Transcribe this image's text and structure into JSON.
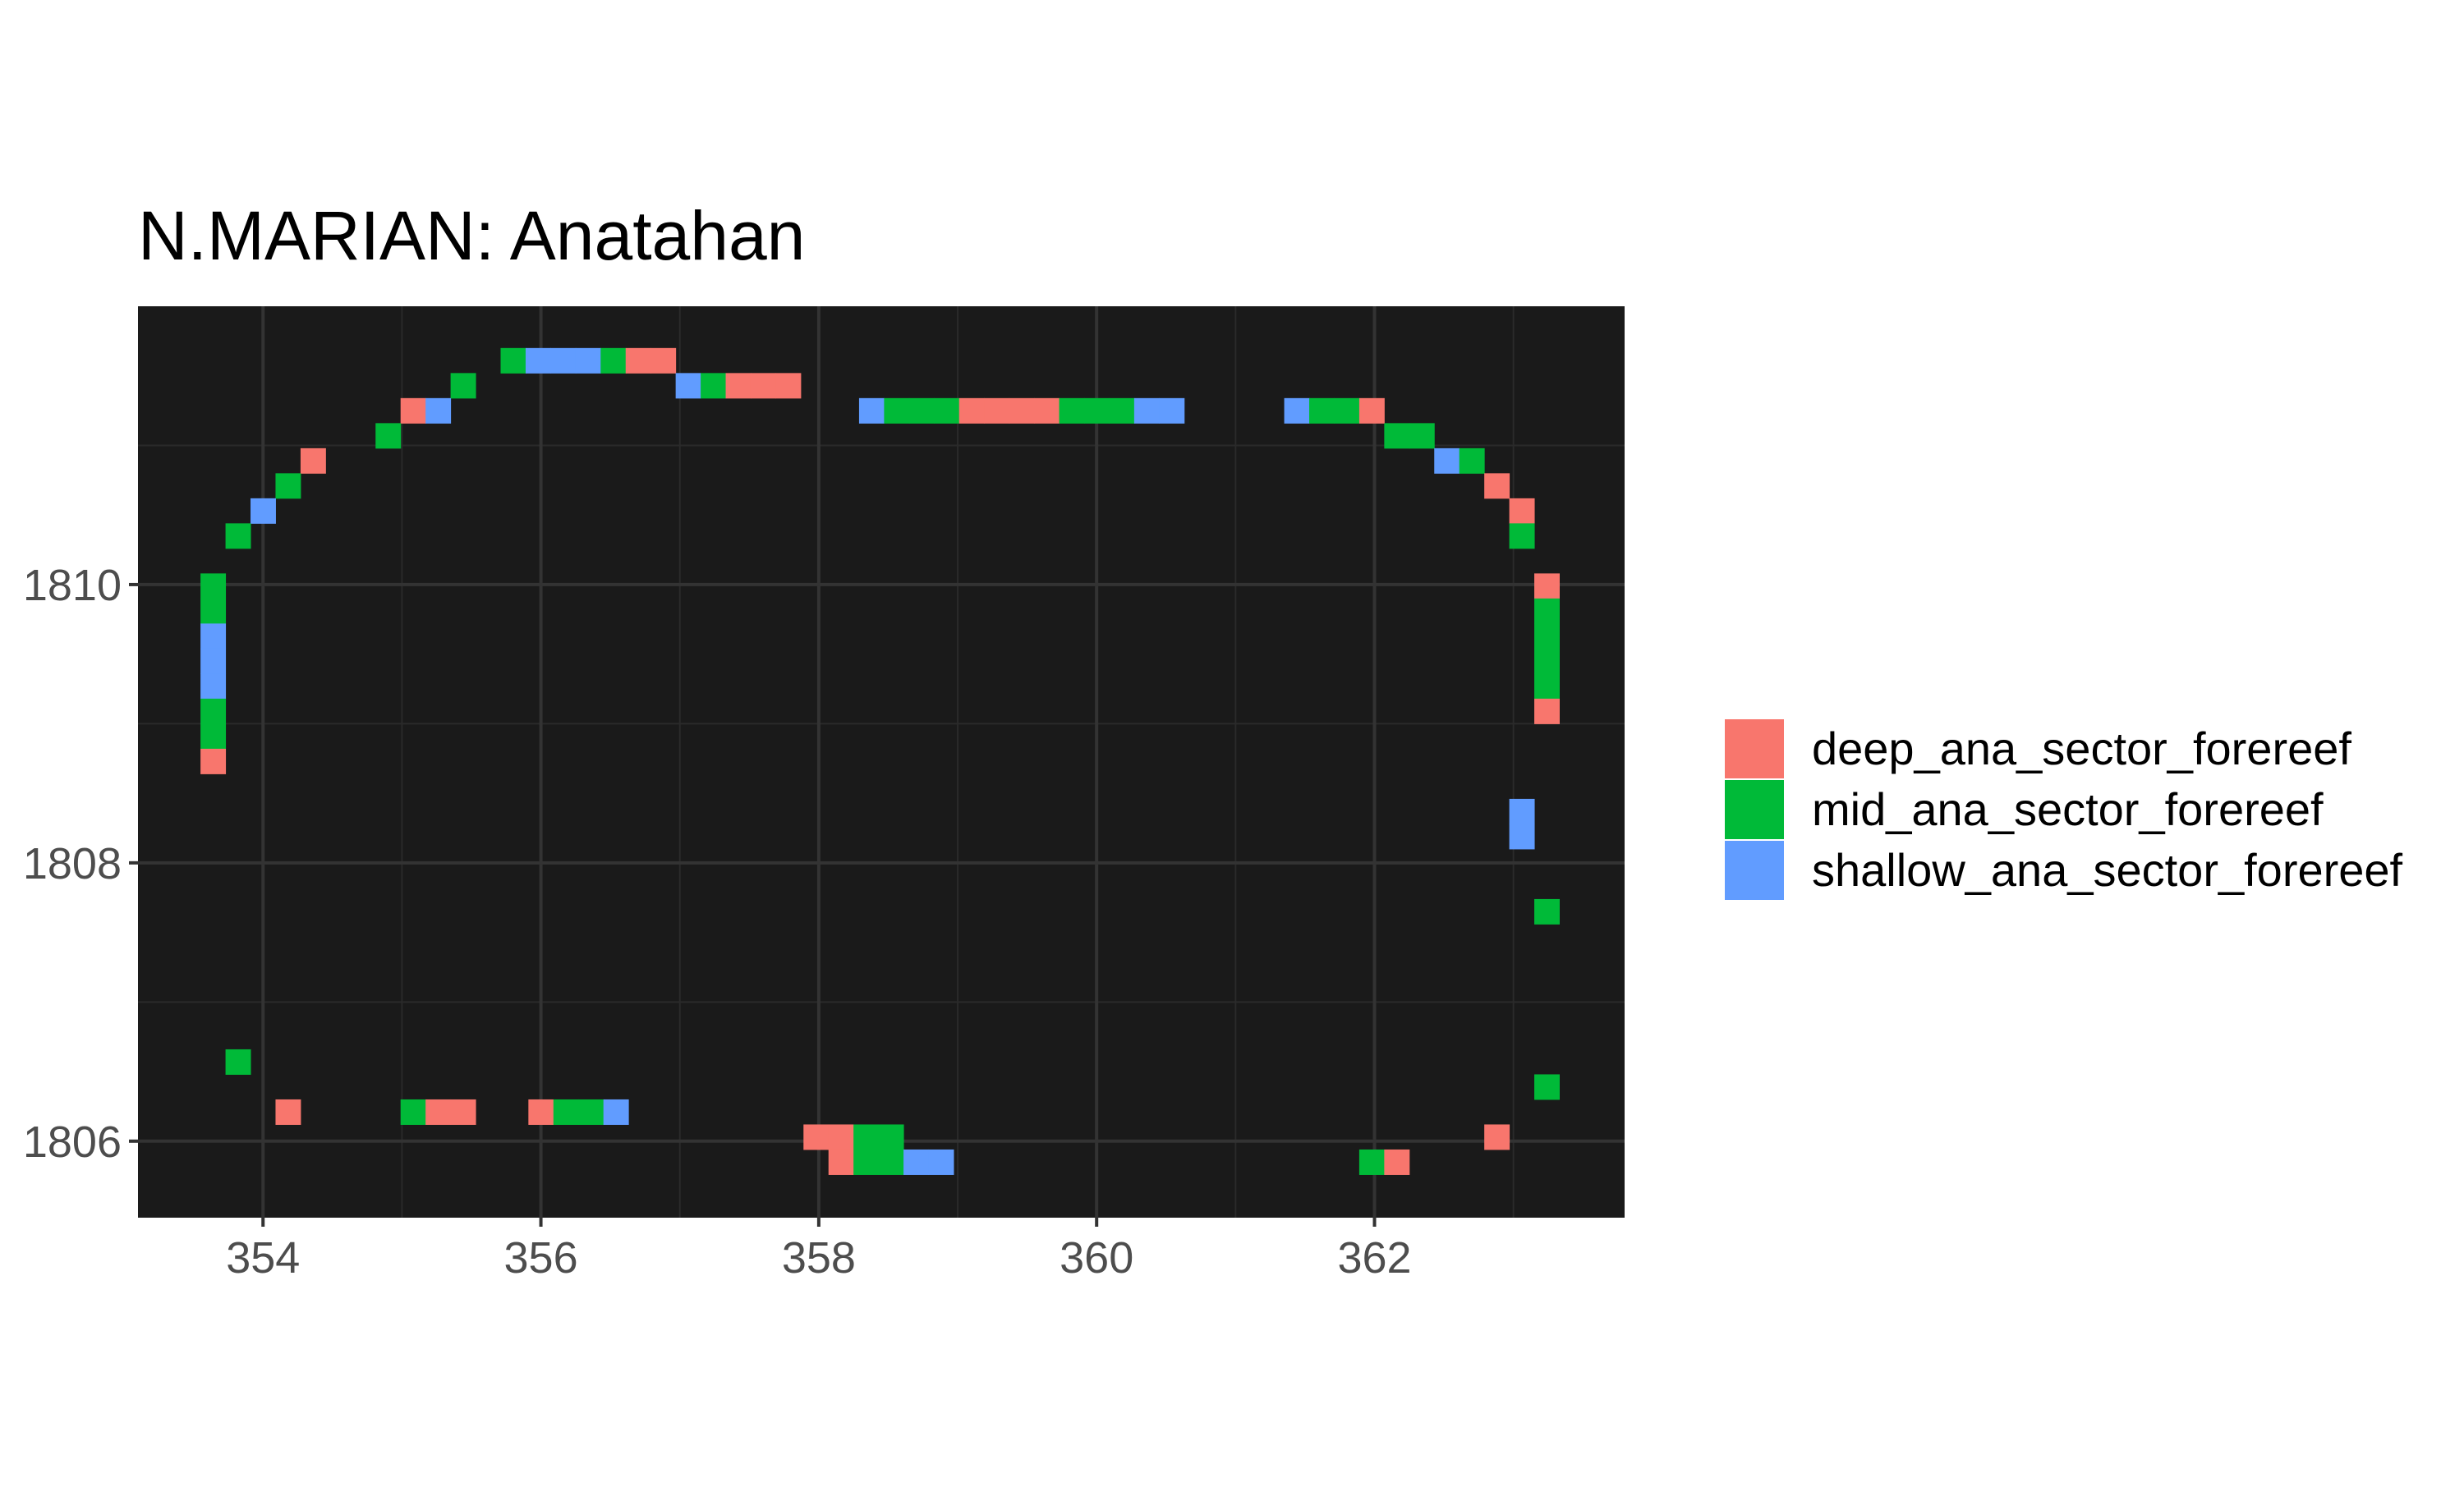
{
  "chart_data": {
    "type": "heatmap",
    "title": "N.MARIAN: Anatahan",
    "xlabel": "",
    "ylabel": "",
    "xlim": [
      353.1,
      363.8
    ],
    "ylim": [
      1805.45,
      1812.0
    ],
    "cell_size": 0.18,
    "x_ticks": [
      354,
      356,
      358,
      360,
      362
    ],
    "x_tick_labels": [
      "354",
      "356",
      "358",
      "360",
      "362"
    ],
    "y_ticks": [
      1806,
      1808,
      1810
    ],
    "y_tick_labels": [
      "1806",
      "1808",
      "1810"
    ],
    "panel_background": "#1a1a1a",
    "grid": true,
    "legend_position": "right",
    "series": [
      {
        "name": "deep_ana_sector_forereef",
        "color": "#F8766D"
      },
      {
        "name": "mid_ana_sector_forereef",
        "color": "#00BA38"
      },
      {
        "name": "shallow_ana_sector_forereef",
        "color": "#619CFF"
      }
    ],
    "cells": [
      {
        "x": 355.8,
        "y": 1811.61,
        "v": "mid_ana_sector_forereef"
      },
      {
        "x": 355.98,
        "y": 1811.61,
        "v": "shallow_ana_sector_forereef"
      },
      {
        "x": 356.16,
        "y": 1811.61,
        "v": "shallow_ana_sector_forereef"
      },
      {
        "x": 356.34,
        "y": 1811.61,
        "v": "shallow_ana_sector_forereef"
      },
      {
        "x": 356.52,
        "y": 1811.61,
        "v": "mid_ana_sector_forereef"
      },
      {
        "x": 356.7,
        "y": 1811.61,
        "v": "deep_ana_sector_forereef"
      },
      {
        "x": 356.88,
        "y": 1811.61,
        "v": "deep_ana_sector_forereef"
      },
      {
        "x": 355.44,
        "y": 1811.43,
        "v": "mid_ana_sector_forereef"
      },
      {
        "x": 357.06,
        "y": 1811.43,
        "v": "shallow_ana_sector_forereef"
      },
      {
        "x": 357.24,
        "y": 1811.43,
        "v": "mid_ana_sector_forereef"
      },
      {
        "x": 357.42,
        "y": 1811.43,
        "v": "deep_ana_sector_forereef"
      },
      {
        "x": 357.6,
        "y": 1811.43,
        "v": "deep_ana_sector_forereef"
      },
      {
        "x": 357.78,
        "y": 1811.43,
        "v": "deep_ana_sector_forereef"
      },
      {
        "x": 355.08,
        "y": 1811.25,
        "v": "deep_ana_sector_forereef"
      },
      {
        "x": 355.26,
        "y": 1811.25,
        "v": "shallow_ana_sector_forereef"
      },
      {
        "x": 358.38,
        "y": 1811.25,
        "v": "shallow_ana_sector_forereef"
      },
      {
        "x": 358.56,
        "y": 1811.25,
        "v": "mid_ana_sector_forereef"
      },
      {
        "x": 358.74,
        "y": 1811.25,
        "v": "mid_ana_sector_forereef"
      },
      {
        "x": 358.92,
        "y": 1811.25,
        "v": "mid_ana_sector_forereef"
      },
      {
        "x": 359.1,
        "y": 1811.25,
        "v": "deep_ana_sector_forereef"
      },
      {
        "x": 359.28,
        "y": 1811.25,
        "v": "deep_ana_sector_forereef"
      },
      {
        "x": 359.46,
        "y": 1811.25,
        "v": "deep_ana_sector_forereef"
      },
      {
        "x": 359.64,
        "y": 1811.25,
        "v": "deep_ana_sector_forereef"
      },
      {
        "x": 359.82,
        "y": 1811.25,
        "v": "mid_ana_sector_forereef"
      },
      {
        "x": 360.0,
        "y": 1811.25,
        "v": "mid_ana_sector_forereef"
      },
      {
        "x": 360.18,
        "y": 1811.25,
        "v": "mid_ana_sector_forereef"
      },
      {
        "x": 360.36,
        "y": 1811.25,
        "v": "shallow_ana_sector_forereef"
      },
      {
        "x": 360.54,
        "y": 1811.25,
        "v": "shallow_ana_sector_forereef"
      },
      {
        "x": 361.44,
        "y": 1811.25,
        "v": "shallow_ana_sector_forereef"
      },
      {
        "x": 361.62,
        "y": 1811.25,
        "v": "mid_ana_sector_forereef"
      },
      {
        "x": 361.8,
        "y": 1811.25,
        "v": "mid_ana_sector_forereef"
      },
      {
        "x": 361.98,
        "y": 1811.25,
        "v": "deep_ana_sector_forereef"
      },
      {
        "x": 354.9,
        "y": 1811.07,
        "v": "mid_ana_sector_forereef"
      },
      {
        "x": 362.16,
        "y": 1811.07,
        "v": "mid_ana_sector_forereef"
      },
      {
        "x": 362.34,
        "y": 1811.07,
        "v": "mid_ana_sector_forereef"
      },
      {
        "x": 354.36,
        "y": 1810.89,
        "v": "deep_ana_sector_forereef"
      },
      {
        "x": 362.52,
        "y": 1810.89,
        "v": "shallow_ana_sector_forereef"
      },
      {
        "x": 362.7,
        "y": 1810.89,
        "v": "mid_ana_sector_forereef"
      },
      {
        "x": 354.18,
        "y": 1810.71,
        "v": "mid_ana_sector_forereef"
      },
      {
        "x": 362.88,
        "y": 1810.71,
        "v": "deep_ana_sector_forereef"
      },
      {
        "x": 354.0,
        "y": 1810.53,
        "v": "shallow_ana_sector_forereef"
      },
      {
        "x": 363.06,
        "y": 1810.53,
        "v": "deep_ana_sector_forereef"
      },
      {
        "x": 353.82,
        "y": 1810.35,
        "v": "mid_ana_sector_forereef"
      },
      {
        "x": 363.06,
        "y": 1810.35,
        "v": "mid_ana_sector_forereef"
      },
      {
        "x": 353.64,
        "y": 1809.99,
        "v": "mid_ana_sector_forereef"
      },
      {
        "x": 353.64,
        "y": 1809.81,
        "v": "mid_ana_sector_forereef"
      },
      {
        "x": 353.64,
        "y": 1809.63,
        "v": "shallow_ana_sector_forereef"
      },
      {
        "x": 353.64,
        "y": 1809.45,
        "v": "shallow_ana_sector_forereef"
      },
      {
        "x": 353.64,
        "y": 1809.27,
        "v": "shallow_ana_sector_forereef"
      },
      {
        "x": 353.64,
        "y": 1809.09,
        "v": "mid_ana_sector_forereef"
      },
      {
        "x": 353.64,
        "y": 1808.91,
        "v": "mid_ana_sector_forereef"
      },
      {
        "x": 353.64,
        "y": 1808.73,
        "v": "deep_ana_sector_forereef"
      },
      {
        "x": 363.24,
        "y": 1809.99,
        "v": "deep_ana_sector_forereef"
      },
      {
        "x": 363.24,
        "y": 1809.81,
        "v": "mid_ana_sector_forereef"
      },
      {
        "x": 363.24,
        "y": 1809.63,
        "v": "mid_ana_sector_forereef"
      },
      {
        "x": 363.24,
        "y": 1809.45,
        "v": "mid_ana_sector_forereef"
      },
      {
        "x": 363.24,
        "y": 1809.27,
        "v": "mid_ana_sector_forereef"
      },
      {
        "x": 363.24,
        "y": 1809.09,
        "v": "deep_ana_sector_forereef"
      },
      {
        "x": 363.06,
        "y": 1808.37,
        "v": "shallow_ana_sector_forereef"
      },
      {
        "x": 363.06,
        "y": 1808.19,
        "v": "shallow_ana_sector_forereef"
      },
      {
        "x": 363.24,
        "y": 1807.65,
        "v": "mid_ana_sector_forereef"
      },
      {
        "x": 363.24,
        "y": 1806.39,
        "v": "mid_ana_sector_forereef"
      },
      {
        "x": 353.82,
        "y": 1806.57,
        "v": "mid_ana_sector_forereef"
      },
      {
        "x": 354.18,
        "y": 1806.21,
        "v": "deep_ana_sector_forereef"
      },
      {
        "x": 355.08,
        "y": 1806.21,
        "v": "mid_ana_sector_forereef"
      },
      {
        "x": 355.26,
        "y": 1806.21,
        "v": "deep_ana_sector_forereef"
      },
      {
        "x": 355.44,
        "y": 1806.21,
        "v": "deep_ana_sector_forereef"
      },
      {
        "x": 356.0,
        "y": 1806.21,
        "v": "deep_ana_sector_forereef"
      },
      {
        "x": 356.18,
        "y": 1806.21,
        "v": "mid_ana_sector_forereef"
      },
      {
        "x": 356.36,
        "y": 1806.21,
        "v": "mid_ana_sector_forereef"
      },
      {
        "x": 356.54,
        "y": 1806.21,
        "v": "shallow_ana_sector_forereef"
      },
      {
        "x": 357.98,
        "y": 1806.03,
        "v": "deep_ana_sector_forereef"
      },
      {
        "x": 358.16,
        "y": 1806.03,
        "v": "deep_ana_sector_forereef"
      },
      {
        "x": 358.34,
        "y": 1806.03,
        "v": "mid_ana_sector_forereef"
      },
      {
        "x": 358.52,
        "y": 1806.03,
        "v": "mid_ana_sector_forereef"
      },
      {
        "x": 358.16,
        "y": 1805.85,
        "v": "deep_ana_sector_forereef"
      },
      {
        "x": 358.34,
        "y": 1805.85,
        "v": "mid_ana_sector_forereef"
      },
      {
        "x": 358.52,
        "y": 1805.85,
        "v": "mid_ana_sector_forereef"
      },
      {
        "x": 358.7,
        "y": 1805.85,
        "v": "shallow_ana_sector_forereef"
      },
      {
        "x": 358.88,
        "y": 1805.85,
        "v": "shallow_ana_sector_forereef"
      },
      {
        "x": 362.88,
        "y": 1806.03,
        "v": "deep_ana_sector_forereef"
      },
      {
        "x": 361.98,
        "y": 1805.85,
        "v": "mid_ana_sector_forereef"
      },
      {
        "x": 362.16,
        "y": 1805.85,
        "v": "deep_ana_sector_forereef"
      }
    ]
  }
}
